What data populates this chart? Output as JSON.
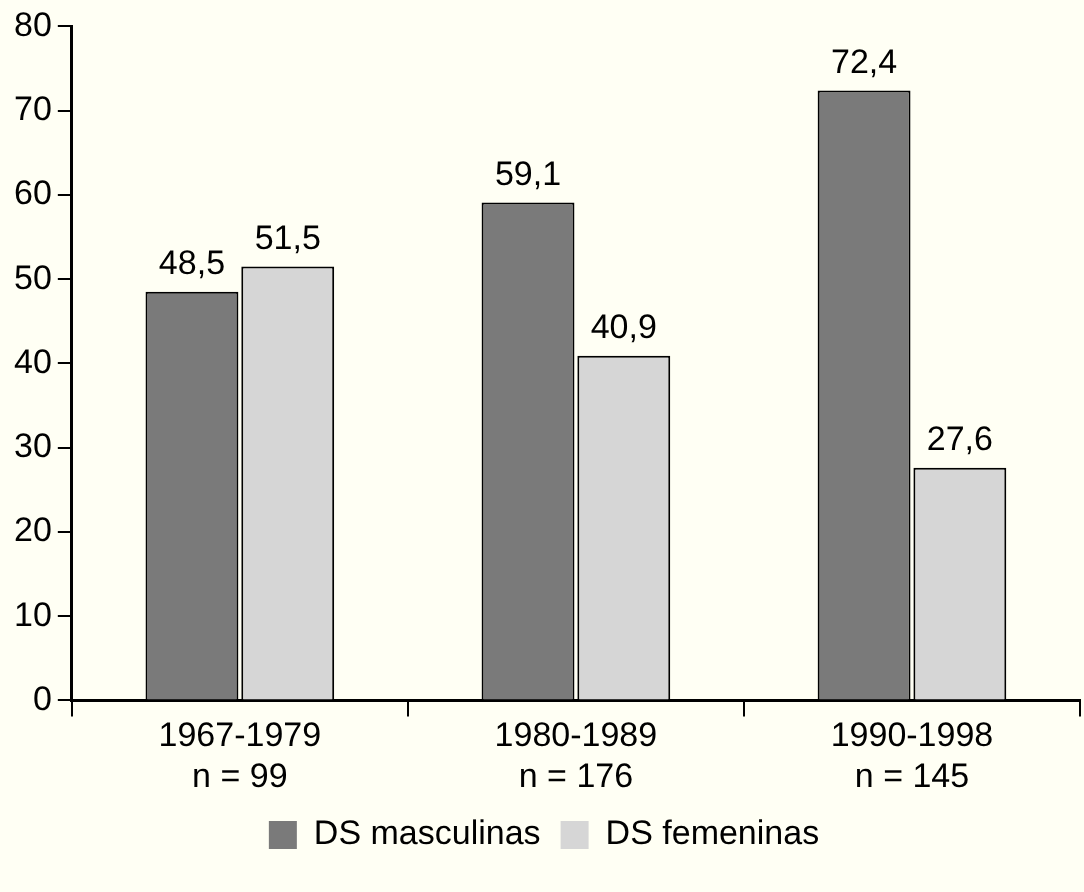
{
  "chart_data": {
    "type": "bar",
    "categories": [
      "1967-1979\nn = 99",
      "1980-1989\nn = 176",
      "1990-1998\nn = 145"
    ],
    "series": [
      {
        "name": "DS masculinas",
        "color": "#7a7a7a",
        "values": [
          48.5,
          59.1,
          72.4
        ],
        "value_labels": [
          "48,5",
          "59,1",
          "72,4"
        ]
      },
      {
        "name": "DS femeninas",
        "color": "#d6d6d6",
        "values": [
          51.5,
          40.9,
          27.6
        ],
        "value_labels": [
          "51,5",
          "40,9",
          "27,6"
        ]
      }
    ],
    "ylim": [
      0,
      80
    ],
    "yticks": [
      0,
      10,
      20,
      30,
      40,
      50,
      60,
      70,
      80
    ],
    "grid": false,
    "legend": "bottom"
  }
}
